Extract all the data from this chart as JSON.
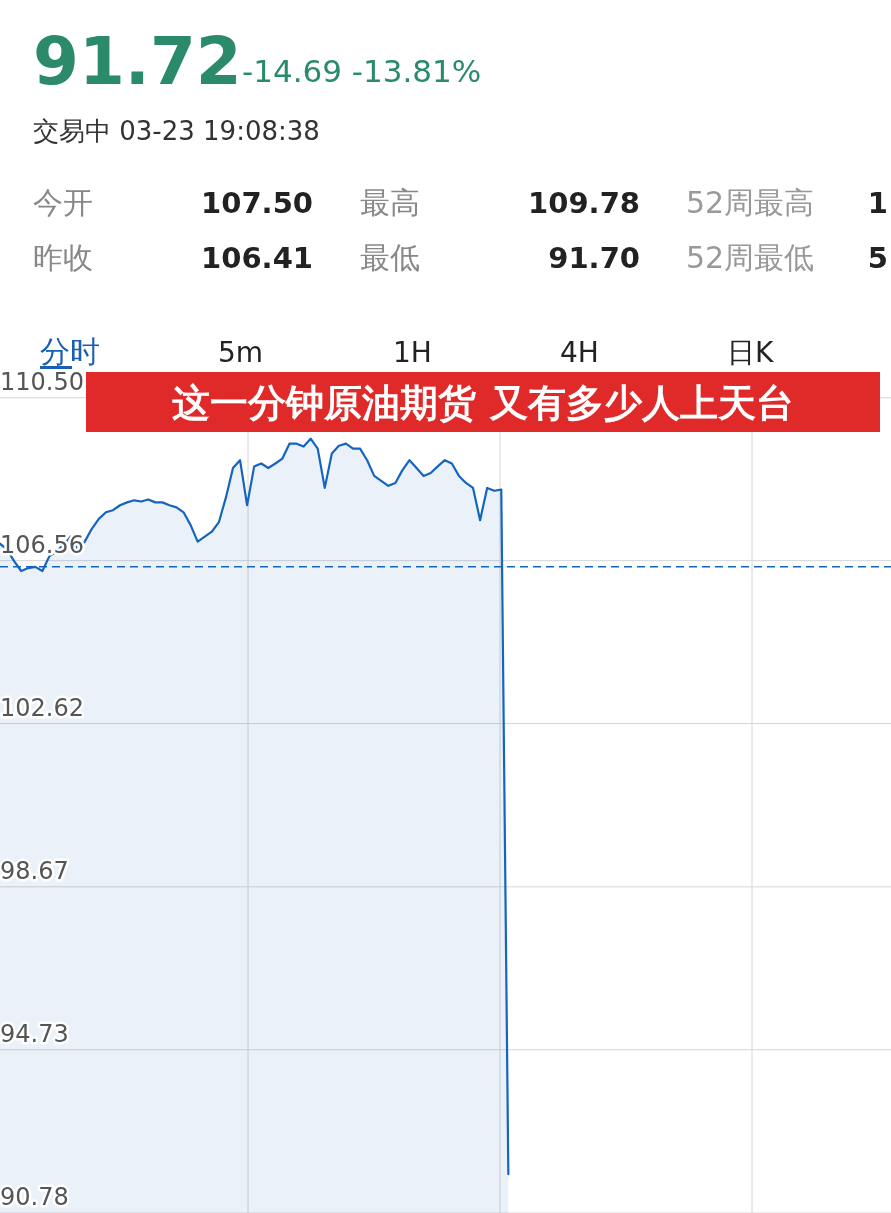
{
  "chart_data": {
    "type": "area",
    "title": "这一分钟原油期货 又有多少人上天台",
    "annotations": [
      "91.72",
      "-14.69 -13.81%",
      "交易中 03-23 19:08:38",
      "今开",
      "107.50",
      "最高",
      "109.78",
      "52周最高",
      "1",
      "昨收",
      "106.41",
      "最低",
      "91.70",
      "52周最低",
      "5",
      "分时",
      "5m",
      "1H",
      "4H",
      "日K"
    ],
    "categories": [
      null,
      null,
      null,
      null,
      null,
      null,
      null,
      null,
      null,
      null,
      null,
      null,
      null,
      null,
      null,
      null,
      null,
      null,
      null,
      null,
      null,
      null,
      null,
      null,
      null,
      null,
      null,
      null,
      null,
      null,
      null,
      null,
      null,
      null,
      null,
      null,
      null,
      null,
      null,
      null,
      null,
      null,
      null,
      null,
      null,
      null,
      null,
      null,
      null,
      null,
      null,
      null,
      null,
      null,
      null,
      null,
      null,
      null,
      null,
      null,
      null,
      null,
      null,
      null,
      null,
      null,
      null,
      null,
      null,
      null,
      null,
      null,
      null,
      null,
      null,
      null,
      null,
      null,
      null,
      null,
      null,
      null,
      null,
      null,
      null,
      null,
      null,
      null,
      null,
      null,
      null,
      null,
      null,
      null,
      null,
      null,
      null,
      null,
      null,
      null,
      null,
      null,
      null,
      null,
      null,
      null,
      null,
      null,
      null,
      null,
      null,
      null,
      null,
      null,
      null,
      null,
      null,
      null,
      null,
      null,
      null,
      null,
      null,
      null,
      null,
      null,
      null
    ],
    "series": [
      {
        "color": "#1565c0",
        "values": [
          106.97,
          106.83,
          106.55,
          106.31,
          106.38,
          106.41,
          106.31,
          106.67,
          106.78,
          106.95,
          107.14,
          106.83,
          107.02,
          107.33,
          107.57,
          107.73,
          107.78,
          107.9,
          107.97,
          108.02,
          107.99,
          108.04,
          107.97,
          107.97,
          107.9,
          107.85,
          107.73,
          107.42,
          107.02,
          107.14,
          107.26,
          107.49,
          108.09,
          108.8,
          108.99,
          107.9,
          108.84,
          108.91,
          108.8,
          108.91,
          109.03,
          109.39,
          109.39,
          109.32,
          109.51,
          109.27,
          108.32,
          109.15,
          109.34,
          109.39,
          109.27,
          109.27,
          108.99,
          108.61,
          108.49,
          108.37,
          108.44,
          108.75,
          108.99,
          108.8,
          108.61,
          108.68,
          108.84,
          108.99,
          108.91,
          108.61,
          108.44,
          108.32,
          107.54,
          108.32,
          108.25,
          108.28,
          91.72,
          null,
          null,
          null,
          null,
          null,
          null,
          null,
          null,
          null,
          null,
          null,
          null,
          null,
          null,
          null,
          null,
          null,
          null,
          null,
          null,
          null,
          null,
          null,
          null,
          null,
          null,
          null,
          null,
          null,
          null,
          null,
          null,
          null,
          null,
          null,
          null,
          null,
          null,
          null,
          null,
          null,
          null,
          null,
          null,
          null,
          null,
          null,
          null,
          null,
          null,
          null,
          null,
          null,
          null
        ]
      }
    ],
    "ylim": [
      90.78,
      110.93
    ],
    "yticks": [
      {
        "value": 110.5,
        "label": "110.50"
      },
      {
        "value": 106.56,
        "label": "106.56"
      },
      {
        "value": 102.62,
        "label": "102.62"
      },
      {
        "value": 98.67,
        "label": "98.67"
      },
      {
        "value": 94.73,
        "label": "94.73"
      },
      {
        "value": 90.78,
        "label": "90.78"
      }
    ],
    "ref_lines": [
      {
        "axis": "y",
        "value": 106.41,
        "color": "#1565c0",
        "line_style": "dashed"
      }
    ],
    "grid": true,
    "line_style": "solid"
  }
}
